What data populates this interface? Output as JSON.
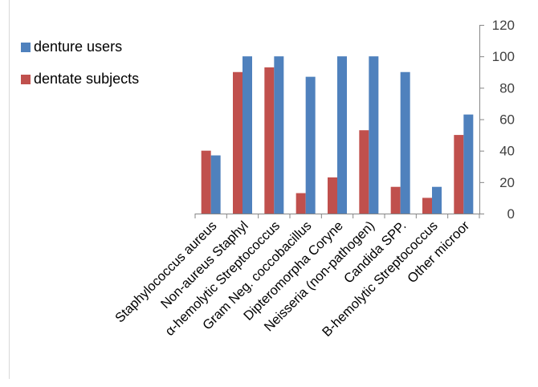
{
  "chart_data": {
    "type": "bar",
    "title": "",
    "xlabel": "",
    "ylabel": "",
    "ylim": [
      0,
      120
    ],
    "yticks": [
      0,
      20,
      40,
      60,
      80,
      100,
      120
    ],
    "y_axis_side": "right",
    "grid": false,
    "legend_position": "top-left",
    "categories": [
      "Staphylococcus aureus",
      "Non-aureus Staphyl",
      "α-hemolytic Streptococcus",
      "Gram Neg. coccobacillus",
      "Dipteromorpha Coryne",
      "Neisseria (non-pathogen)",
      "Candida SPP.",
      "B-hemolytic Streptococcus",
      "Other  microor"
    ],
    "series": [
      {
        "name": "dentate subjects",
        "color": "#c0504d",
        "values": [
          40,
          90,
          93,
          13,
          23,
          53,
          17,
          10,
          50
        ]
      },
      {
        "name": "denture users",
        "color": "#4f81bd",
        "values": [
          37,
          100,
          100,
          87,
          100,
          100,
          90,
          17,
          63
        ]
      }
    ],
    "legend_order": [
      "denture users",
      "dentate subjects"
    ]
  }
}
